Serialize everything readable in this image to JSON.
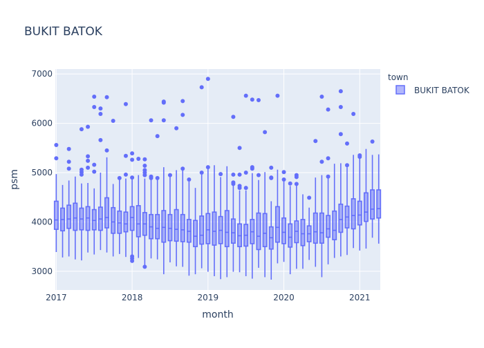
{
  "chart_data": {
    "type": "box",
    "title": "BUKIT BATOK",
    "xlabel": "month",
    "ylabel": "psm",
    "ylim": [
      2620,
      7100
    ],
    "yticks": [
      3000,
      4000,
      5000,
      6000,
      7000
    ],
    "yticklabels": [
      "3000",
      "4000",
      "5000",
      "6000",
      "7000"
    ],
    "xlim": [
      "2017-01",
      "2021-04"
    ],
    "xticklabels": [
      "2017",
      "2018",
      "2019",
      "2020",
      "2021"
    ],
    "grid": true,
    "legend_title": "town",
    "legend_position": "top-right",
    "colors": {
      "box": "#636efa",
      "box_fill": "rgba(99,110,250,0.5)",
      "plot_bg": "#e5ecf6",
      "grid": "#ffffff",
      "text": "#2a3f5f"
    },
    "series": [
      {
        "name": "BUKIT BATOK",
        "boxes": [
          {
            "x": "2017-01",
            "min": 3390,
            "q1": 3850,
            "median": 4040,
            "q3": 4420,
            "max": 4970,
            "outliers": [
              5290,
              5560
            ]
          },
          {
            "x": "2017-02",
            "min": 3280,
            "q1": 3820,
            "median": 4050,
            "q3": 4280,
            "max": 4750,
            "outliers": []
          },
          {
            "x": "2017-03",
            "min": 3300,
            "q1": 3870,
            "median": 4060,
            "q3": 4340,
            "max": 4840,
            "outliers": [
              5080,
              5220,
              5480
            ]
          },
          {
            "x": "2017-04",
            "min": 3240,
            "q1": 3830,
            "median": 4080,
            "q3": 4380,
            "max": 4920,
            "outliers": []
          },
          {
            "x": "2017-05",
            "min": 3220,
            "q1": 3840,
            "median": 4060,
            "q3": 4280,
            "max": 4780,
            "outliers": [
              4960,
              5010,
              5060,
              5880
            ]
          },
          {
            "x": "2017-06",
            "min": 3380,
            "q1": 3830,
            "median": 4080,
            "q3": 4310,
            "max": 4790,
            "outliers": [
              5100,
              5240,
              5330,
              5930
            ]
          },
          {
            "x": "2017-07",
            "min": 3340,
            "q1": 3840,
            "median": 4030,
            "q3": 4250,
            "max": 4680,
            "outliers": [
              5020,
              5160,
              6330,
              6540
            ]
          },
          {
            "x": "2017-08",
            "min": 3430,
            "q1": 3830,
            "median": 4060,
            "q3": 4300,
            "max": 5000,
            "outliers": [
              5660,
              6190,
              6300
            ]
          },
          {
            "x": "2017-09",
            "min": 3380,
            "q1": 3880,
            "median": 4090,
            "q3": 4490,
            "max": 5310,
            "outliers": [
              5450,
              6530
            ]
          },
          {
            "x": "2017-10",
            "min": 3300,
            "q1": 3770,
            "median": 4000,
            "q3": 4290,
            "max": 4770,
            "outliers": [
              6050
            ]
          },
          {
            "x": "2017-11",
            "min": 3350,
            "q1": 3770,
            "median": 3980,
            "q3": 4220,
            "max": 4880,
            "outliers": [
              4890
            ]
          },
          {
            "x": "2017-12",
            "min": 3290,
            "q1": 3800,
            "median": 3960,
            "q3": 4200,
            "max": 4880,
            "outliers": [
              4960,
              5340,
              6390
            ]
          },
          {
            "x": "2018-01",
            "min": 3330,
            "q1": 3830,
            "median": 4090,
            "q3": 4310,
            "max": 4860,
            "outliers": [
              3210,
              3260,
              3300,
              4900,
              5260,
              5390
            ]
          },
          {
            "x": "2018-02",
            "min": 3270,
            "q1": 3700,
            "median": 3960,
            "q3": 4330,
            "max": 4950,
            "outliers": [
              5280
            ]
          },
          {
            "x": "2018-03",
            "min": 3110,
            "q1": 3730,
            "median": 3960,
            "q3": 4190,
            "max": 4880,
            "outliers": [
              3090,
              4950,
              5000,
              5050,
              5140,
              5270
            ]
          },
          {
            "x": "2018-04",
            "min": 3260,
            "q1": 3660,
            "median": 3900,
            "q3": 4150,
            "max": 4870,
            "outliers": [
              4890,
              4920,
              6060
            ]
          },
          {
            "x": "2018-05",
            "min": 3240,
            "q1": 3660,
            "median": 3870,
            "q3": 4150,
            "max": 4880,
            "outliers": [
              4890,
              5740
            ]
          },
          {
            "x": "2018-06",
            "min": 2940,
            "q1": 3590,
            "median": 3890,
            "q3": 4230,
            "max": 5110,
            "outliers": [
              6060,
              6420,
              6440
            ]
          },
          {
            "x": "2018-07",
            "min": 3180,
            "q1": 3620,
            "median": 3870,
            "q3": 4150,
            "max": 4940,
            "outliers": [
              4950
            ]
          },
          {
            "x": "2018-08",
            "min": 3100,
            "q1": 3610,
            "median": 3850,
            "q3": 4250,
            "max": 5050,
            "outliers": [
              5900
            ]
          },
          {
            "x": "2018-09",
            "min": 3090,
            "q1": 3600,
            "median": 3840,
            "q3": 4150,
            "max": 5050,
            "outliers": [
              5080,
              6170,
              6450
            ]
          },
          {
            "x": "2018-10",
            "min": 2910,
            "q1": 3590,
            "median": 3810,
            "q3": 4050,
            "max": 4820,
            "outliers": [
              4860
            ]
          },
          {
            "x": "2018-11",
            "min": 2940,
            "q1": 3500,
            "median": 3710,
            "q3": 4030,
            "max": 4690,
            "outliers": []
          },
          {
            "x": "2018-12",
            "min": 3060,
            "q1": 3550,
            "median": 3730,
            "q3": 4120,
            "max": 4960,
            "outliers": [
              5000,
              6730
            ]
          },
          {
            "x": "2019-01",
            "min": 2990,
            "q1": 3560,
            "median": 3840,
            "q3": 4170,
            "max": 5080,
            "outliers": [
              5110,
              6900
            ]
          },
          {
            "x": "2019-02",
            "min": 2900,
            "q1": 3530,
            "median": 3810,
            "q3": 4200,
            "max": 5150,
            "outliers": []
          },
          {
            "x": "2019-03",
            "min": 2840,
            "q1": 3560,
            "median": 3830,
            "q3": 4110,
            "max": 4910,
            "outliers": [
              4970
            ]
          },
          {
            "x": "2019-04",
            "min": 2880,
            "q1": 3500,
            "median": 3790,
            "q3": 4230,
            "max": 5130,
            "outliers": []
          },
          {
            "x": "2019-05",
            "min": 2990,
            "q1": 3570,
            "median": 3780,
            "q3": 4060,
            "max": 4740,
            "outliers": [
              4770,
              4800,
              4960,
              6130
            ]
          },
          {
            "x": "2019-06",
            "min": 2980,
            "q1": 3500,
            "median": 3720,
            "q3": 3960,
            "max": 4640,
            "outliers": [
              4690,
              4730,
              4960,
              5500
            ]
          },
          {
            "x": "2019-07",
            "min": 2900,
            "q1": 3510,
            "median": 3730,
            "q3": 3950,
            "max": 4640,
            "outliers": [
              4690,
              5000,
              6560
            ]
          },
          {
            "x": "2019-08",
            "min": 2850,
            "q1": 3560,
            "median": 3800,
            "q3": 4050,
            "max": 4990,
            "outliers": [
              5080,
              5110,
              6480
            ]
          },
          {
            "x": "2019-09",
            "min": 3070,
            "q1": 3440,
            "median": 3710,
            "q3": 4180,
            "max": 4850,
            "outliers": [
              4950,
              6470
            ]
          },
          {
            "x": "2019-10",
            "min": 2880,
            "q1": 3500,
            "median": 3770,
            "q3": 4170,
            "max": 5010,
            "outliers": [
              5820
            ]
          },
          {
            "x": "2019-11",
            "min": 2830,
            "q1": 3450,
            "median": 3680,
            "q3": 3900,
            "max": 4420,
            "outliers": [
              4890,
              4900,
              5100
            ]
          },
          {
            "x": "2019-12",
            "min": 3160,
            "q1": 3590,
            "median": 3890,
            "q3": 4310,
            "max": 5060,
            "outliers": [
              6560
            ]
          },
          {
            "x": "2020-01",
            "min": 3190,
            "q1": 3560,
            "median": 3790,
            "q3": 4080,
            "max": 4820,
            "outliers": [
              4860,
              5010
            ]
          },
          {
            "x": "2020-02",
            "min": 2940,
            "q1": 3490,
            "median": 3690,
            "q3": 3960,
            "max": 4730,
            "outliers": [
              4780
            ]
          },
          {
            "x": "2020-03",
            "min": 3050,
            "q1": 3580,
            "median": 3810,
            "q3": 4020,
            "max": 4760,
            "outliers": [
              4770,
              4910,
              4950
            ]
          },
          {
            "x": "2020-04",
            "min": 3050,
            "q1": 3520,
            "median": 3760,
            "q3": 4050,
            "max": 4560,
            "outliers": []
          },
          {
            "x": "2020-05",
            "min": 3230,
            "q1": 3600,
            "median": 3760,
            "q3": 3920,
            "max": 4290,
            "outliers": [
              4490
            ]
          },
          {
            "x": "2020-06",
            "min": 3090,
            "q1": 3570,
            "median": 3800,
            "q3": 4180,
            "max": 4900,
            "outliers": [
              5640
            ]
          },
          {
            "x": "2020-07",
            "min": 2880,
            "q1": 3570,
            "median": 3780,
            "q3": 4180,
            "max": 4950,
            "outliers": [
              5220,
              6540
            ]
          },
          {
            "x": "2020-08",
            "min": 3140,
            "q1": 3690,
            "median": 3860,
            "q3": 4130,
            "max": 4900,
            "outliers": [
              4920,
              5290,
              6280
            ]
          },
          {
            "x": "2020-09",
            "min": 3270,
            "q1": 3640,
            "median": 3830,
            "q3": 4220,
            "max": 5180,
            "outliers": []
          },
          {
            "x": "2020-10",
            "min": 3300,
            "q1": 3790,
            "median": 4050,
            "q3": 4360,
            "max": 5190,
            "outliers": [
              5780,
              6330,
              6650
            ]
          },
          {
            "x": "2020-11",
            "min": 3330,
            "q1": 3880,
            "median": 4100,
            "q3": 4320,
            "max": 5110,
            "outliers": [
              5150,
              5590
            ]
          },
          {
            "x": "2020-12",
            "min": 3470,
            "q1": 3860,
            "median": 4130,
            "q3": 4470,
            "max": 5360,
            "outliers": [
              6190
            ]
          },
          {
            "x": "2021-01",
            "min": 3420,
            "q1": 3940,
            "median": 4140,
            "q3": 4420,
            "max": 5290,
            "outliers": [
              5320,
              5350
            ]
          },
          {
            "x": "2021-02",
            "min": 3460,
            "q1": 4010,
            "median": 4200,
            "q3": 4590,
            "max": 5480,
            "outliers": []
          },
          {
            "x": "2021-03",
            "min": 3680,
            "q1": 4060,
            "median": 4260,
            "q3": 4650,
            "max": 5360,
            "outliers": [
              5630
            ]
          },
          {
            "x": "2021-04",
            "min": 3560,
            "q1": 4080,
            "median": 4270,
            "q3": 4650,
            "max": 5370,
            "outliers": []
          }
        ]
      }
    ]
  }
}
